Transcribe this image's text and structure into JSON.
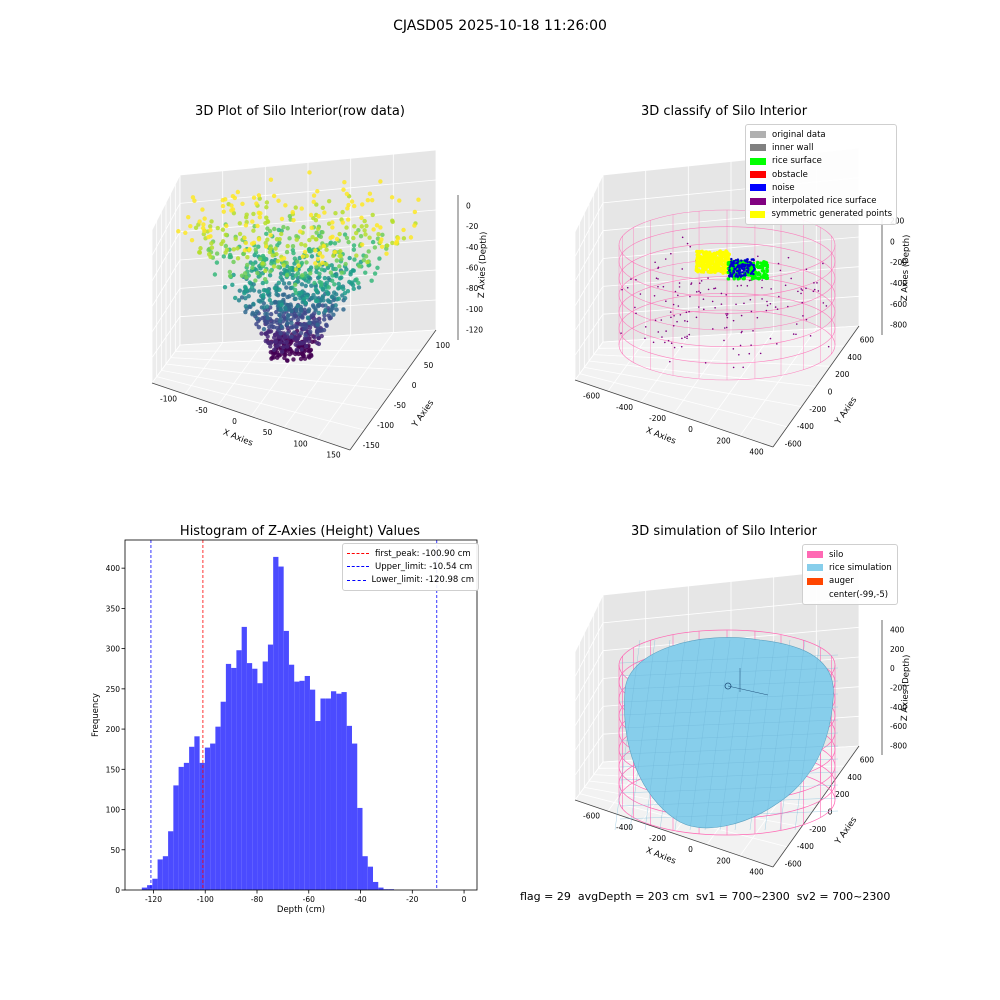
{
  "suptitle": "CJASD05 2025-10-18 11:26:00",
  "stats_line": "flag = 29  avgDepth = 203 cm  sv1 = 700~2300  sv2 = 700~2300",
  "chart_data": [
    {
      "type": "scatter",
      "projection": "3d",
      "title": "3D Plot of Silo Interior(row data)",
      "xlabel": "X Axies",
      "ylabel": "Y Axies",
      "zlabel": "Z Axies (Depth)",
      "xticks": [
        "-100",
        "-50",
        "0",
        "50",
        "100",
        "150"
      ],
      "yticks": [
        "-150",
        "-100",
        "-50",
        "0",
        "50",
        "100"
      ],
      "zticks": [
        "0",
        "-20",
        "-40",
        "-60",
        "-80",
        "-100",
        "-120"
      ],
      "xlim": [
        -120,
        160
      ],
      "ylim": [
        -160,
        130
      ],
      "zlim": [
        -130,
        0
      ],
      "colormap": "viridis"
    },
    {
      "type": "scatter",
      "projection": "3d",
      "title": "3D classify of Silo Interior",
      "xlabel": "X Axies",
      "ylabel": "Y Axies",
      "zlabel": "Z Axies (Depth)",
      "xticks": [
        "-600",
        "-400",
        "-200",
        "0",
        "200",
        "400"
      ],
      "yticks": [
        "-600",
        "-400",
        "-200",
        "0",
        "200",
        "400",
        "600"
      ],
      "zticks": [
        "200",
        "0",
        "-200",
        "-400",
        "-600",
        "-800"
      ],
      "legend": [
        {
          "label": "original data",
          "color": "#b0b0b0"
        },
        {
          "label": "inner wall",
          "color": "#808080"
        },
        {
          "label": "rice surface",
          "color": "#00ff00"
        },
        {
          "label": "obstacle",
          "color": "#ff0000"
        },
        {
          "label": "noise",
          "color": "#0000ff"
        },
        {
          "label": "interpolated rice surface",
          "color": "#800080"
        },
        {
          "label": "symmetric generated points",
          "color": "#ffff00"
        }
      ]
    },
    {
      "type": "bar",
      "subtype": "histogram",
      "title": "Histogram of Z-Axies (Height) Values",
      "xlabel": "Depth (cm)",
      "ylabel": "Frequency",
      "xlim": [
        -131,
        5
      ],
      "ylim": [
        0,
        435
      ],
      "xticks": [
        -120,
        -100,
        -80,
        -60,
        -40,
        -20,
        0
      ],
      "yticks": [
        0,
        50,
        100,
        150,
        200,
        250,
        300,
        350,
        400
      ],
      "bin_width": 2.03,
      "bin_start": -124.5,
      "values": [
        3,
        6,
        14,
        38,
        42,
        73,
        130,
        153,
        158,
        178,
        191,
        158,
        177,
        182,
        203,
        234,
        281,
        276,
        298,
        327,
        282,
        275,
        257,
        284,
        305,
        414,
        402,
        322,
        280,
        259,
        260,
        266,
        249,
        210,
        238,
        238,
        247,
        244,
        246,
        204,
        182,
        102,
        42,
        29,
        10,
        3,
        1,
        1
      ],
      "bar_color": "#4b4bff",
      "vlines": [
        {
          "label": "first_peak: -100.90 cm",
          "x": -100.9,
          "color": "#ff0000"
        },
        {
          "label": "Upper_limit: -10.54 cm",
          "x": -10.54,
          "color": "#0000ff"
        },
        {
          "label": "Lower_limit: -120.98 cm",
          "x": -120.98,
          "color": "#0000ff"
        }
      ],
      "legend_position": "upper-right"
    },
    {
      "type": "surface",
      "projection": "3d",
      "title": "3D simulation of Silo Interior",
      "xlabel": "X Axies",
      "ylabel": "Y Axies",
      "zlabel": "Z Axies (Depth)",
      "xticks": [
        "-600",
        "-400",
        "-200",
        "0",
        "200",
        "400"
      ],
      "yticks": [
        "-600",
        "-400",
        "-200",
        "0",
        "200",
        "400",
        "600"
      ],
      "zticks": [
        "400",
        "200",
        "0",
        "-200",
        "-400",
        "-600",
        "-800"
      ],
      "legend": [
        {
          "label": "silo",
          "color": "#ff69b4"
        },
        {
          "label": "rice simulation",
          "color": "#87ceeb"
        },
        {
          "label": "auger",
          "color": "#ff4500"
        },
        {
          "label": "center(-99,-5)",
          "color": "transparent"
        }
      ]
    }
  ]
}
